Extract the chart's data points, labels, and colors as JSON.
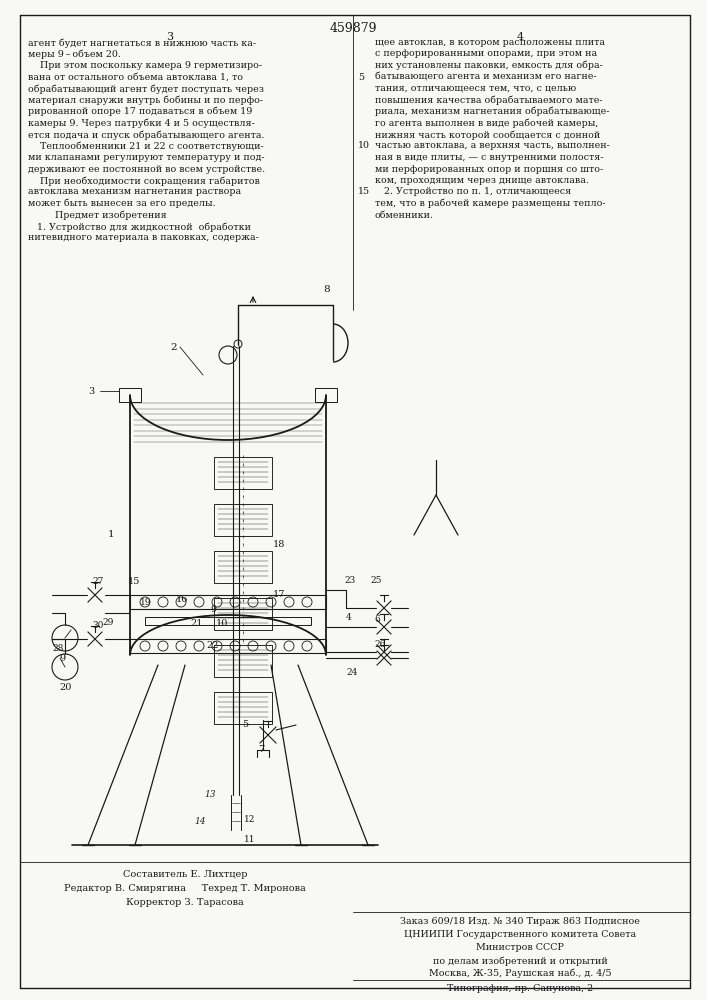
{
  "patent_number": "459879",
  "page_left": "3",
  "page_right": "4",
  "background_color": "#f8f8f5",
  "text_color": "#1a1a1a",
  "line_color": "#1a1a1a",
  "composer": "Составитель Е. Лихтцер",
  "editor": "Редактор В. Смирягина     Техред Т. Миронова",
  "corrector": "Корректор З. Тарасова",
  "order_line": "Заказ 609/18 Изд. № 340 Тираж 863 Подписное",
  "org_line1": "ЦНИИПИ Государственного комитета Совета",
  "org_line2": "Министров СССР",
  "org_line3": "по делам изобретений и открытий",
  "org_line4": "Москва, Ж-35, Раушская наб., д. 4/5",
  "print_line": "Типография, пр. Сапунова, 2"
}
